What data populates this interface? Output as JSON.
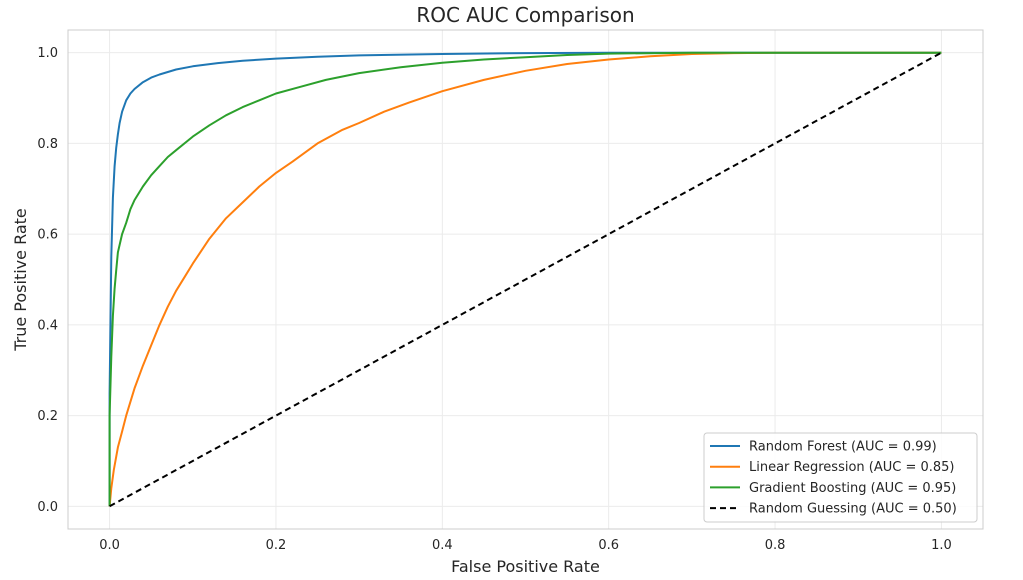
{
  "chart_data": {
    "type": "line",
    "title": "ROC AUC Comparison",
    "xlabel": "False Positive Rate",
    "ylabel": "True Positive Rate",
    "xlim": [
      -0.05,
      1.05
    ],
    "ylim": [
      -0.05,
      1.05
    ],
    "xticks": [
      0.0,
      0.2,
      0.4,
      0.6,
      0.8,
      1.0
    ],
    "yticks": [
      0.0,
      0.2,
      0.4,
      0.6,
      0.8,
      1.0
    ],
    "xtick_labels": [
      "0.0",
      "0.2",
      "0.4",
      "0.6",
      "0.8",
      "1.0"
    ],
    "ytick_labels": [
      "0.0",
      "0.2",
      "0.4",
      "0.6",
      "0.8",
      "1.0"
    ],
    "grid": true,
    "legend_position": "lower-right",
    "series": [
      {
        "name": "Random Forest (AUC = 0.99)",
        "color": "#1f77b4",
        "dash": "solid",
        "x": [
          0.0,
          0.0,
          0.002,
          0.004,
          0.006,
          0.008,
          0.01,
          0.012,
          0.015,
          0.02,
          0.025,
          0.03,
          0.04,
          0.05,
          0.06,
          0.08,
          0.1,
          0.13,
          0.16,
          0.2,
          0.25,
          0.3,
          0.4,
          0.5,
          0.6,
          0.7,
          0.8,
          0.9,
          1.0
        ],
        "y": [
          0.0,
          0.25,
          0.55,
          0.68,
          0.75,
          0.79,
          0.82,
          0.845,
          0.87,
          0.895,
          0.91,
          0.92,
          0.935,
          0.945,
          0.952,
          0.963,
          0.97,
          0.977,
          0.982,
          0.987,
          0.991,
          0.994,
          0.997,
          0.999,
          1.0,
          1.0,
          1.0,
          1.0,
          1.0
        ]
      },
      {
        "name": "Linear Regression (AUC = 0.85)",
        "color": "#ff7f0e",
        "dash": "solid",
        "x": [
          0.0,
          0.002,
          0.005,
          0.01,
          0.015,
          0.02,
          0.03,
          0.04,
          0.05,
          0.06,
          0.07,
          0.08,
          0.09,
          0.1,
          0.12,
          0.14,
          0.16,
          0.18,
          0.2,
          0.22,
          0.25,
          0.28,
          0.3,
          0.33,
          0.36,
          0.4,
          0.45,
          0.5,
          0.55,
          0.6,
          0.65,
          0.7,
          0.75,
          0.8,
          0.9,
          1.0
        ],
        "y": [
          0.0,
          0.04,
          0.08,
          0.13,
          0.165,
          0.2,
          0.26,
          0.31,
          0.355,
          0.4,
          0.44,
          0.475,
          0.505,
          0.535,
          0.59,
          0.635,
          0.67,
          0.705,
          0.735,
          0.76,
          0.8,
          0.83,
          0.845,
          0.87,
          0.89,
          0.915,
          0.94,
          0.96,
          0.975,
          0.985,
          0.992,
          0.997,
          0.999,
          1.0,
          1.0,
          1.0
        ]
      },
      {
        "name": "Gradient Boosting (AUC = 0.95)",
        "color": "#2ca02c",
        "dash": "solid",
        "x": [
          0.0,
          0.0,
          0.002,
          0.004,
          0.006,
          0.008,
          0.01,
          0.015,
          0.02,
          0.025,
          0.03,
          0.04,
          0.05,
          0.06,
          0.07,
          0.08,
          0.1,
          0.12,
          0.14,
          0.16,
          0.18,
          0.2,
          0.23,
          0.26,
          0.3,
          0.35,
          0.4,
          0.45,
          0.5,
          0.55,
          0.6,
          0.7,
          0.8,
          0.9,
          1.0
        ],
        "y": [
          0.0,
          0.2,
          0.33,
          0.42,
          0.48,
          0.52,
          0.56,
          0.6,
          0.625,
          0.655,
          0.675,
          0.705,
          0.73,
          0.75,
          0.77,
          0.785,
          0.815,
          0.84,
          0.862,
          0.88,
          0.895,
          0.91,
          0.925,
          0.94,
          0.955,
          0.968,
          0.978,
          0.985,
          0.99,
          0.995,
          0.998,
          1.0,
          1.0,
          1.0,
          1.0
        ]
      },
      {
        "name": "Random Guessing (AUC = 0.50)",
        "color": "#000000",
        "dash": "dashed",
        "x": [
          0.0,
          1.0
        ],
        "y": [
          0.0,
          1.0
        ]
      }
    ]
  }
}
